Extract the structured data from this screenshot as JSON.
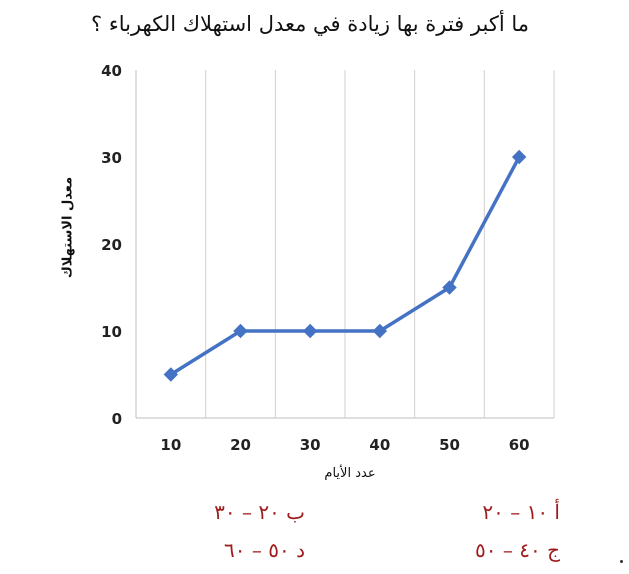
{
  "question": "ما أكبر فترة بها زيادة في معدل استهلاك الكهرباء ؟",
  "options": {
    "a": "أ ١٠ – ٢٠",
    "b": "ب ٢٠ – ٣٠",
    "c": "ج ٤٠ – ٥٠",
    "d": "د ٥٠ – ٦٠"
  },
  "chart_data": {
    "type": "line",
    "title": "",
    "xlabel": "عدد الأيام",
    "ylabel": "معدل الاستهلاك",
    "x": [
      10,
      20,
      30,
      40,
      50,
      60
    ],
    "x_tick_labels": [
      "10",
      "20",
      "30",
      "40",
      "50",
      "60"
    ],
    "y_tick_labels": [
      "0",
      "10",
      "20",
      "30",
      "40"
    ],
    "ylim": [
      0,
      40
    ],
    "yticks": [
      0,
      10,
      20,
      30,
      40
    ],
    "grid": "vertical",
    "series": [
      {
        "values": [
          5,
          10,
          10,
          10,
          15,
          30
        ],
        "color": "#4472c4",
        "marker": "diamond"
      }
    ]
  }
}
